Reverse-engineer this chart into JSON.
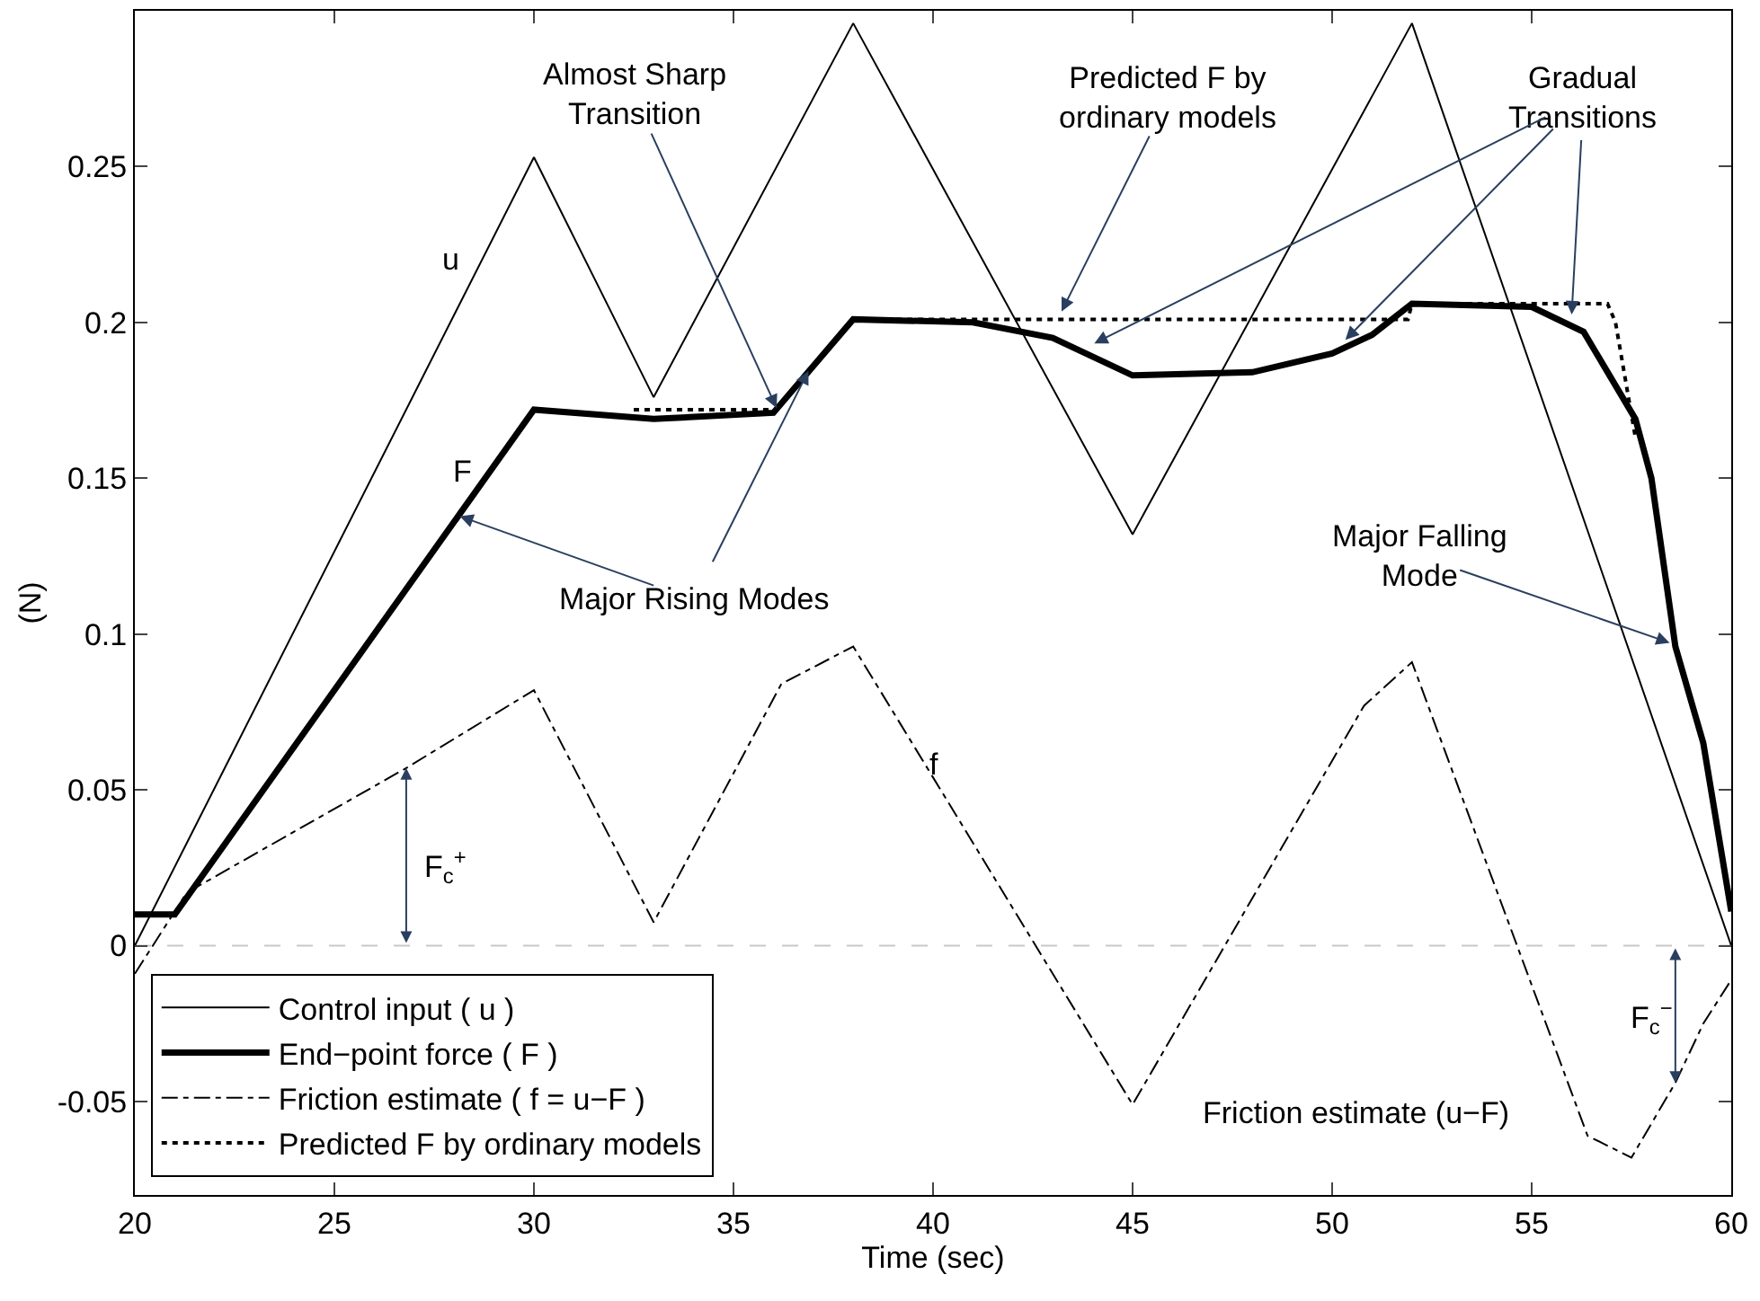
{
  "chart_data": {
    "type": "line",
    "xlabel": "Time (sec)",
    "ylabel": "(N)",
    "xlim": [
      20,
      60
    ],
    "xticks": [
      20,
      25,
      30,
      35,
      40,
      45,
      50,
      55,
      60
    ],
    "ylim": [
      -0.08,
      0.3
    ],
    "yticks": [
      -0.05,
      0,
      0.05,
      0.1,
      0.15,
      0.2,
      0.25
    ],
    "grid": false,
    "legend": "bottom left",
    "marker": "none",
    "series": [
      {
        "name": "Control input ( u )",
        "color": "#000000",
        "line_style": "solid",
        "x": [
          20,
          30,
          33,
          38,
          45,
          52,
          60
        ],
        "values": [
          0,
          0.253,
          0.176,
          0.296,
          0.132,
          0.296,
          0
        ]
      },
      {
        "name": "End−point force ( F )",
        "color": "#000000",
        "line_style": "solid",
        "x": [
          20,
          21,
          30,
          33,
          36,
          38,
          41,
          43,
          45,
          48,
          50,
          51,
          52,
          55,
          56.3,
          57.6,
          58,
          58.6,
          59.3,
          60
        ],
        "values": [
          0.01,
          0.01,
          0.172,
          0.169,
          0.171,
          0.201,
          0.2,
          0.195,
          0.183,
          0.184,
          0.19,
          0.196,
          0.206,
          0.205,
          0.197,
          0.169,
          0.15,
          0.096,
          0.065,
          0.011
        ]
      },
      {
        "name": "Friction estimate ( f = u−F )",
        "color": "#000000",
        "line_style": "dashdot",
        "x": [
          20,
          21.3,
          26.8,
          30,
          33,
          36.2,
          38,
          45,
          50.8,
          52,
          56.4,
          57.5,
          58.6,
          59.3,
          60
        ],
        "values": [
          -0.009,
          0.017,
          0.057,
          0.082,
          0.0075,
          0.084,
          0.096,
          -0.051,
          0.077,
          0.091,
          -0.061,
          -0.068,
          -0.044,
          -0.025,
          -0.011
        ]
      },
      {
        "name": "Predicted F by ordinary models",
        "color": "#000000",
        "line_style": "dotted",
        "x": [
          32.5,
          36,
          37,
          38,
          51.9,
          52,
          56.9,
          57.1,
          57.6
        ],
        "values": [
          0.172,
          0.172,
          null,
          0.201,
          0.201,
          0.206,
          0.206,
          0.2,
          0.163
        ]
      }
    ],
    "ref_lines": [
      {
        "axis": "y",
        "value": 0,
        "color": "#c8c8c8",
        "line_style": "dashed"
      }
    ],
    "annotations": [
      "u",
      "F",
      "f",
      {
        "text": "Almost Sharp\nTransition",
        "x": 36.1,
        "y": 0.172
      },
      {
        "text": "Major Rising Modes",
        "x": 28.1,
        "y": 0.138
      },
      {
        "text": "Predicted F by\nordinary models",
        "x": 43.2,
        "y": 0.203
      },
      {
        "text": "Gradual\nTransitions",
        "x": 56.0,
        "y": 0.202
      },
      {
        "text": "Major Falling\nMode",
        "x": 58.5,
        "y": 0.097
      },
      "Friction estimate (u−F)",
      {
        "text": "F$_{c}$$^{+}$",
        "x": 26.8,
        "y": 0.057
      },
      {
        "text": "F$_{c}$$^{−}$",
        "x": 58.6,
        "y": -0.044
      }
    ]
  }
}
